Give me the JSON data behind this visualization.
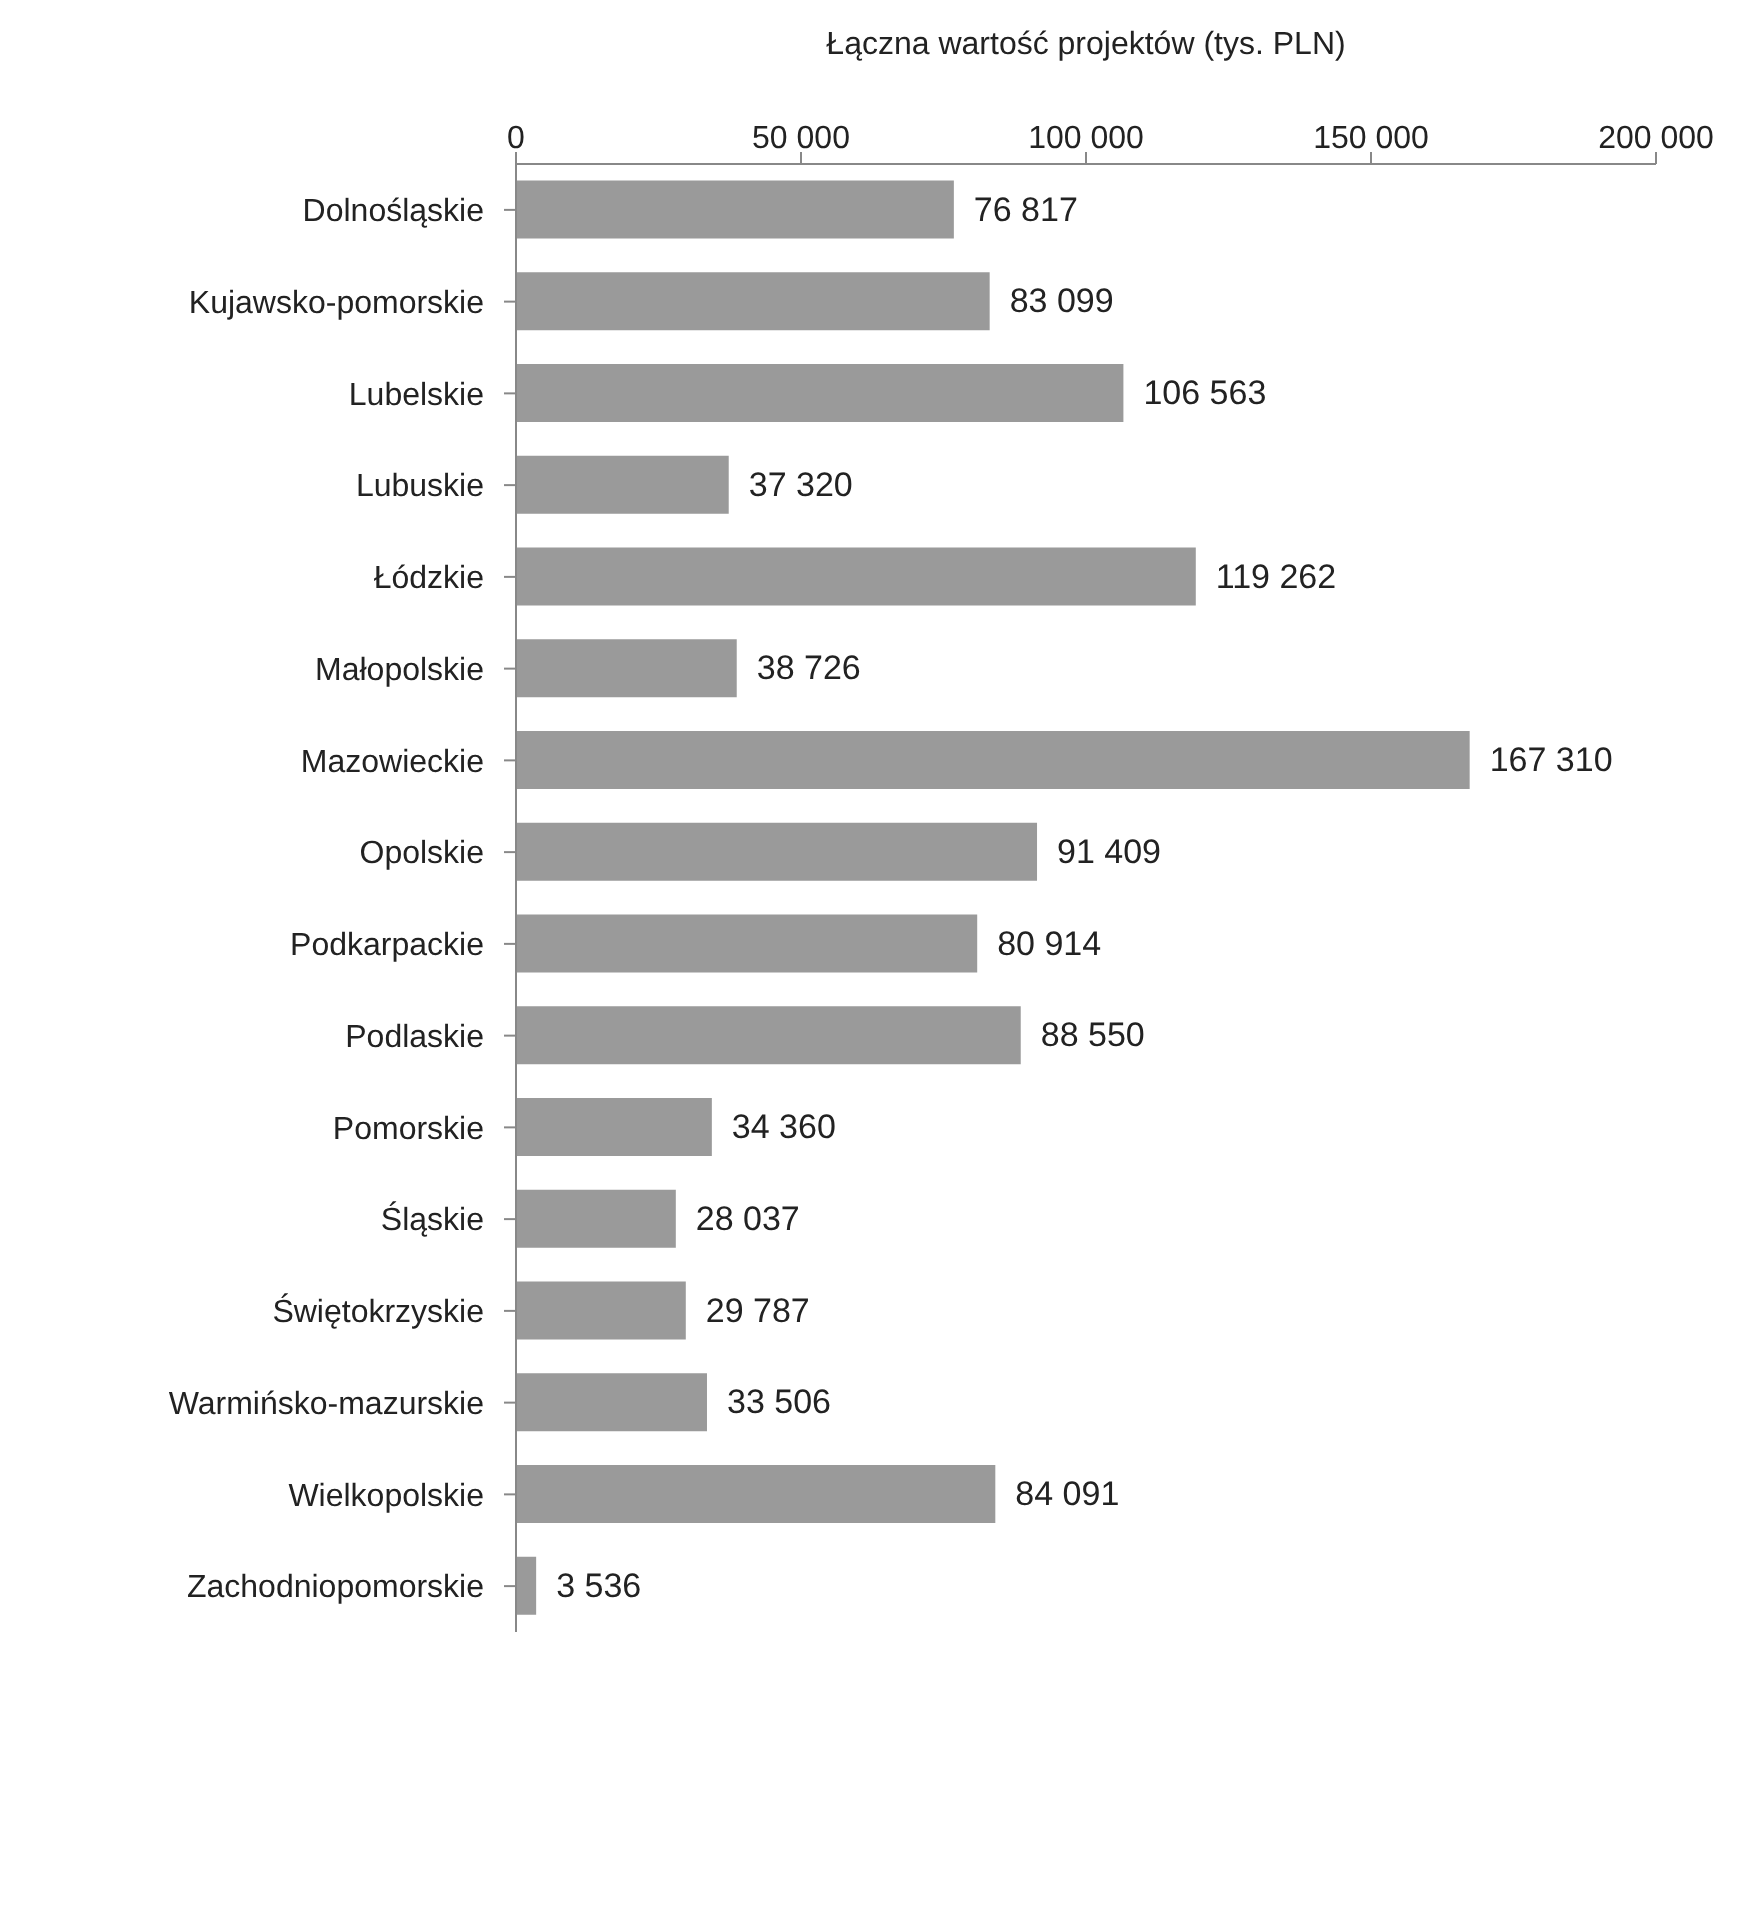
{
  "chart_data": {
    "type": "bar",
    "orientation": "horizontal",
    "xlabel": "Łączna wartość projektów (tys. PLN)",
    "categories": [
      "Dolnośląskie",
      "Kujawsko-pomorskie",
      "Lubelskie",
      "Lubuskie",
      "Łódzkie",
      "Małopolskie",
      "Mazowieckie",
      "Opolskie",
      "Podkarpackie",
      "Podlaskie",
      "Pomorskie",
      "Śląskie",
      "Świętokrzyskie",
      "Warmińsko-mazurskie",
      "Wielkopolskie",
      "Zachodniopomorskie"
    ],
    "values": [
      76817,
      83099,
      106563,
      37320,
      119262,
      38726,
      167310,
      91409,
      80914,
      88550,
      34360,
      28037,
      29787,
      33506,
      84091,
      3536
    ],
    "value_labels": [
      "76 817",
      "83 099",
      "106 563",
      "37 320",
      "119 262",
      "38 726",
      "167 310",
      "91 409",
      "80 914",
      "88 550",
      "34 360",
      "28 037",
      "29 787",
      "33 506",
      "84 091",
      "3 536"
    ],
    "color": "#9a9a9a",
    "xlim": [
      0,
      200000
    ],
    "xticks": [
      0,
      {
        "value": 50000,
        "label": "50 000"
      },
      {
        "value": 100000,
        "label": "100 000"
      },
      {
        "value": 150000,
        "label": "150 000"
      },
      {
        "value": 200000,
        "label": "200 000"
      }
    ],
    "grid": false
  }
}
